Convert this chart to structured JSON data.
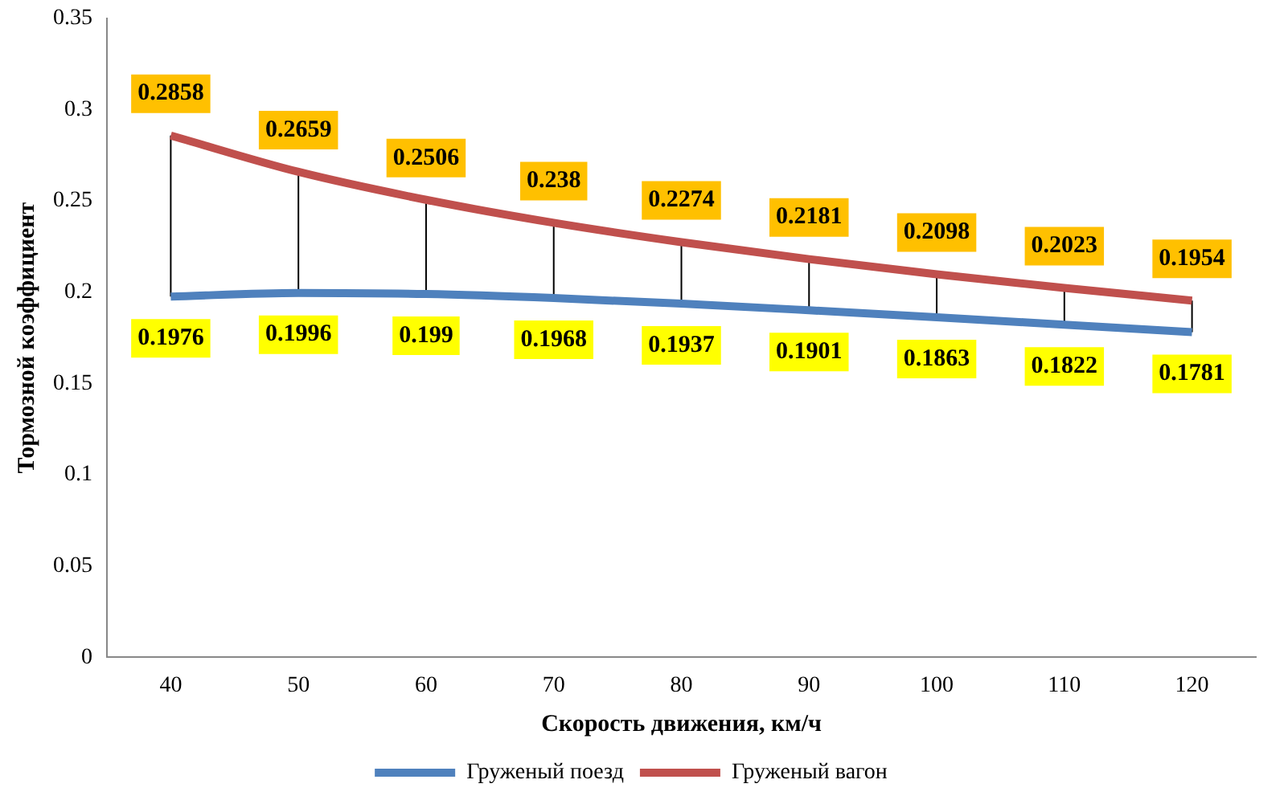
{
  "chart_data": {
    "type": "line",
    "xlabel": "Скорость движения, км/ч",
    "ylabel": "Тормозной коэффициент",
    "categories": [
      "40",
      "50",
      "60",
      "70",
      "80",
      "90",
      "100",
      "110",
      "120"
    ],
    "series": [
      {
        "name": "Груженый поезд",
        "color": "#4f81bd",
        "values": [
          0.1976,
          0.1996,
          0.199,
          0.1968,
          0.1937,
          0.1901,
          0.1863,
          0.1822,
          0.1781
        ]
      },
      {
        "name": "Груженый вагон",
        "color": "#c0504d",
        "values": [
          0.2858,
          0.2659,
          0.2506,
          0.238,
          0.2274,
          0.2181,
          0.2098,
          0.2023,
          0.1954
        ]
      }
    ],
    "ylim": [
      0,
      0.35
    ],
    "yticks": [
      0,
      0.05,
      0.1,
      0.15,
      0.2,
      0.25,
      0.3,
      0.35
    ],
    "grid": false,
    "legend": "bottom",
    "marker": "none",
    "line_style": "solid",
    "data_labels": true
  }
}
